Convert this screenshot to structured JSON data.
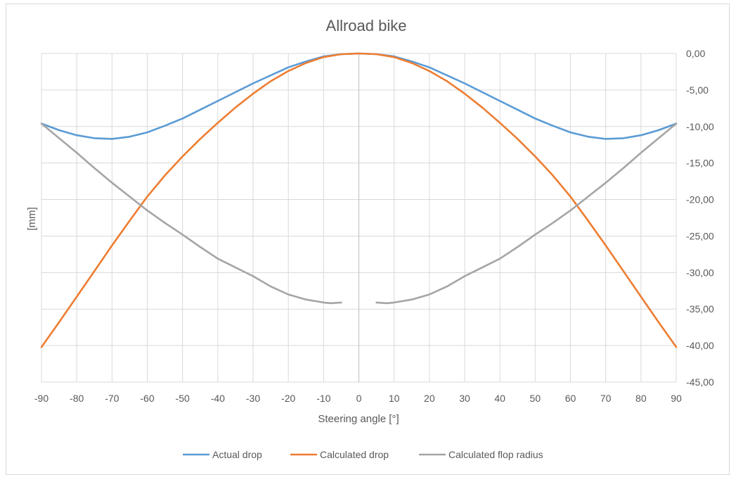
{
  "chart_data": {
    "type": "line",
    "title": "Allroad bike",
    "xlabel": "Steering angle [°]",
    "ylabel": "[mm]",
    "xlim": [
      -90,
      90
    ],
    "ylim": [
      -45,
      0
    ],
    "x_ticks": [
      "-90",
      "-80",
      "-70",
      "-60",
      "-50",
      "-40",
      "-30",
      "-20",
      "-10",
      "0",
      "10",
      "20",
      "30",
      "40",
      "50",
      "60",
      "70",
      "80",
      "90"
    ],
    "y_ticks": [
      "0,00",
      "-5,00",
      "-10,00",
      "-15,00",
      "-20,00",
      "-25,00",
      "-30,00",
      "-35,00",
      "-40,00",
      "-45,00"
    ],
    "grid": true,
    "legend_position": "bottom",
    "series": [
      {
        "name": "Actual drop",
        "color": "#5b9bd5",
        "x": [
          -90,
          -85,
          -80,
          -75,
          -70,
          -65,
          -60,
          -55,
          -50,
          -45,
          -40,
          -35,
          -30,
          -25,
          -20,
          -15,
          -10,
          -5,
          0,
          5,
          10,
          15,
          20,
          25,
          30,
          35,
          40,
          45,
          50,
          55,
          60,
          65,
          70,
          75,
          80,
          85,
          90
        ],
        "y": [
          -9.6,
          -10.5,
          -11.2,
          -11.6,
          -11.7,
          -11.4,
          -10.8,
          -9.9,
          -8.9,
          -7.7,
          -6.5,
          -5.3,
          -4.1,
          -3.0,
          -1.9,
          -1.1,
          -0.4,
          -0.1,
          0,
          -0.1,
          -0.4,
          -1.1,
          -1.9,
          -3.0,
          -4.1,
          -5.3,
          -6.5,
          -7.7,
          -8.9,
          -9.9,
          -10.8,
          -11.4,
          -11.7,
          -11.6,
          -11.2,
          -10.5,
          -9.6
        ]
      },
      {
        "name": "Calculated drop",
        "color": "#ed7d31",
        "x": [
          -90,
          -85,
          -80,
          -75,
          -70,
          -65,
          -60,
          -55,
          -50,
          -45,
          -40,
          -35,
          -30,
          -25,
          -20,
          -15,
          -10,
          -5,
          0,
          5,
          10,
          15,
          20,
          25,
          30,
          35,
          40,
          45,
          50,
          55,
          60,
          65,
          70,
          75,
          80,
          85,
          90
        ],
        "y": [
          -40.2,
          -36.8,
          -33.3,
          -29.8,
          -26.3,
          -22.9,
          -19.6,
          -16.7,
          -14.1,
          -11.7,
          -9.5,
          -7.4,
          -5.5,
          -3.8,
          -2.4,
          -1.3,
          -0.5,
          -0.1,
          0,
          -0.1,
          -0.5,
          -1.3,
          -2.4,
          -3.8,
          -5.5,
          -7.4,
          -9.5,
          -11.7,
          -14.1,
          -16.7,
          -19.6,
          -22.9,
          -26.3,
          -29.8,
          -33.3,
          -36.8,
          -40.2
        ]
      },
      {
        "name": "Calculated flop radius",
        "color": "#a5a5a5",
        "segments": [
          {
            "x": [
              -90,
              -85,
              -80,
              -75,
              -70,
              -65,
              -60,
              -55,
              -50,
              -45,
              -40,
              -35,
              -30,
              -25,
              -20,
              -15,
              -10,
              -8,
              -5
            ],
            "y": [
              -9.6,
              -11.6,
              -13.6,
              -15.7,
              -17.7,
              -19.6,
              -21.5,
              -23.2,
              -24.8,
              -26.5,
              -28.1,
              -29.3,
              -30.5,
              -31.9,
              -33.0,
              -33.7,
              -34.1,
              -34.2,
              -34.1
            ]
          },
          {
            "x": [
              5,
              8,
              10,
              15,
              20,
              25,
              30,
              35,
              40,
              45,
              50,
              55,
              60,
              65,
              70,
              75,
              80,
              85,
              90
            ],
            "y": [
              -34.1,
              -34.2,
              -34.1,
              -33.7,
              -33.0,
              -31.9,
              -30.5,
              -29.3,
              -28.1,
              -26.5,
              -24.8,
              -23.2,
              -21.5,
              -19.6,
              -17.7,
              -15.7,
              -13.6,
              -11.6,
              -9.6
            ]
          }
        ]
      }
    ]
  }
}
